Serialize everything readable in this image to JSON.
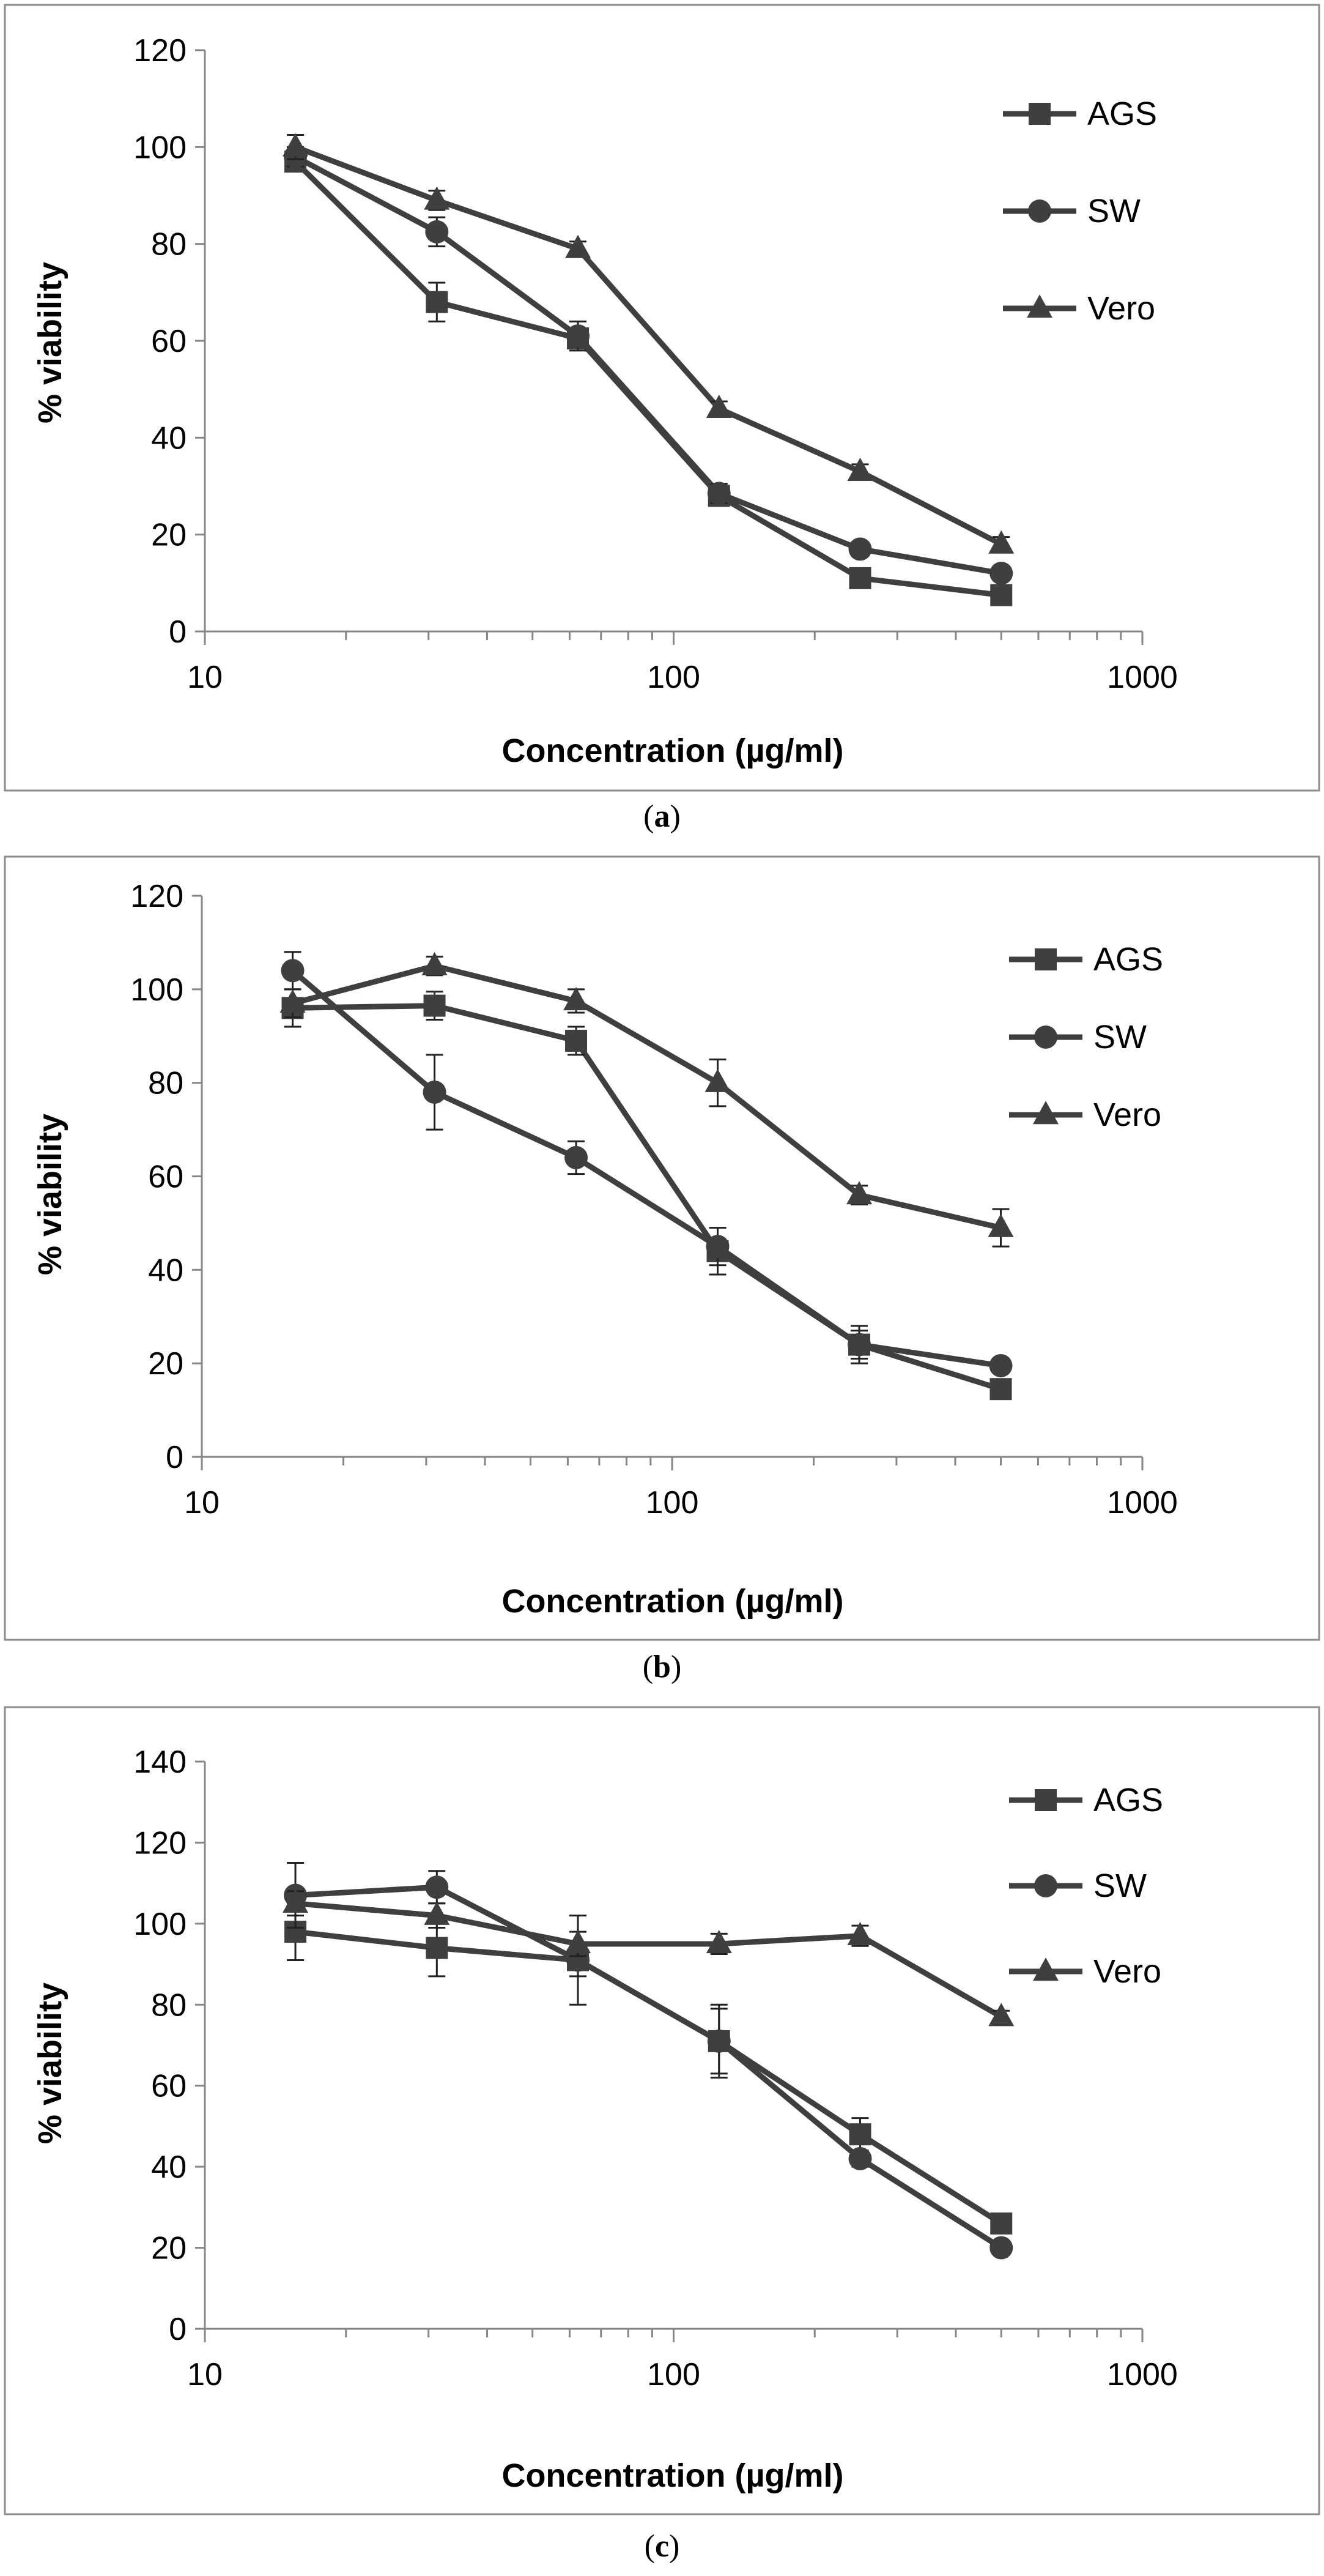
{
  "chart_data": [
    {
      "type": "line",
      "panel": "a",
      "caption_open": "(",
      "caption_letter": "a",
      "caption_close": ")",
      "xlabel": "Concentration (µg/ml)",
      "ylabel": "% viability",
      "xscale": "log",
      "xlim": [
        10,
        1000
      ],
      "ylim": [
        0,
        120
      ],
      "yticks": [
        0,
        20,
        40,
        60,
        80,
        100,
        120
      ],
      "xticks": [
        10,
        100,
        1000
      ],
      "legend": "top-right",
      "grid": false,
      "x": [
        15.6,
        31.25,
        62.5,
        125,
        250,
        500
      ],
      "series": [
        {
          "name": "AGS",
          "marker": "square",
          "values": [
            97,
            68,
            60.5,
            28,
            11,
            7.5
          ],
          "errors": [
            2,
            4,
            2,
            2,
            1.5,
            1.5
          ]
        },
        {
          "name": "SW",
          "marker": "circle",
          "values": [
            98,
            82.5,
            61,
            28.5,
            17,
            12
          ],
          "errors": [
            2,
            3,
            3,
            2,
            1.5,
            1.5
          ]
        },
        {
          "name": "Vero",
          "marker": "triangle",
          "values": [
            100,
            89,
            79,
            46,
            33,
            18
          ],
          "errors": [
            2.5,
            2,
            1.5,
            1.5,
            1.5,
            1.5
          ]
        }
      ]
    },
    {
      "type": "line",
      "panel": "b",
      "caption_open": "(",
      "caption_letter": "b",
      "caption_close": ")",
      "xlabel": "Concentration (µg/ml)",
      "ylabel": "% viability",
      "xscale": "log",
      "xlim": [
        10,
        1000
      ],
      "ylim": [
        0,
        120
      ],
      "yticks": [
        0,
        20,
        40,
        60,
        80,
        100,
        120
      ],
      "xticks": [
        10,
        100,
        1000
      ],
      "legend": "top-right",
      "grid": false,
      "x": [
        15.6,
        31.25,
        62.5,
        125,
        250,
        500
      ],
      "series": [
        {
          "name": "AGS",
          "marker": "square",
          "values": [
            96,
            96.5,
            89,
            44,
            24,
            14.5
          ],
          "errors": [
            4,
            3,
            3,
            5,
            4,
            1.5
          ]
        },
        {
          "name": "SW",
          "marker": "circle",
          "values": [
            104,
            78,
            64,
            45,
            24,
            19.5
          ],
          "errors": [
            4,
            8,
            3.5,
            4,
            3,
            1.5
          ]
        },
        {
          "name": "Vero",
          "marker": "triangle",
          "values": [
            97,
            105,
            97.5,
            80,
            56,
            49
          ],
          "errors": [
            3,
            2,
            2.5,
            5,
            2,
            4
          ]
        }
      ]
    },
    {
      "type": "line",
      "panel": "c",
      "caption_open": "(",
      "caption_letter": "c",
      "caption_close": ")",
      "xlabel": "Concentration (µg/ml)",
      "ylabel": "% viability",
      "xscale": "log",
      "xlim": [
        10,
        1000
      ],
      "ylim": [
        0,
        140
      ],
      "yticks": [
        0,
        20,
        40,
        60,
        80,
        100,
        120,
        140
      ],
      "xticks": [
        10,
        100,
        1000
      ],
      "legend": "top-right",
      "grid": false,
      "x": [
        15.6,
        31.25,
        62.5,
        125,
        250,
        500
      ],
      "series": [
        {
          "name": "AGS",
          "marker": "square",
          "values": [
            98,
            94,
            91,
            71,
            48,
            26
          ],
          "errors": [
            7,
            7,
            11,
            8,
            4,
            1.5
          ]
        },
        {
          "name": "SW",
          "marker": "circle",
          "values": [
            107,
            109,
            91,
            71,
            42,
            20
          ],
          "errors": [
            8,
            4,
            4,
            9,
            2,
            1.5
          ]
        },
        {
          "name": "Vero",
          "marker": "triangle",
          "values": [
            105,
            102,
            95,
            95,
            97,
            77
          ],
          "errors": [
            3,
            3,
            3,
            2.5,
            2.5,
            1.5
          ]
        }
      ]
    }
  ]
}
